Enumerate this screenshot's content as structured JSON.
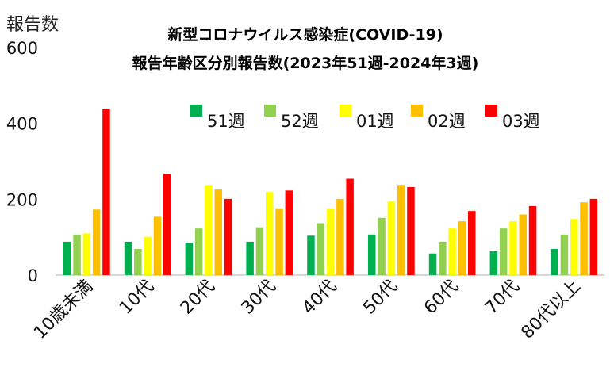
{
  "chart_data": {
    "type": "bar",
    "title": [
      "新型コロナウイルス感染症(COVID-19)",
      "報告年齢区分別報告数(2023年51週-2024年3週)"
    ],
    "ylabel": "報告数",
    "xlabel": "",
    "ylim": [
      0,
      600
    ],
    "yticks": [
      0,
      200,
      400,
      600
    ],
    "legend_position": "top-right",
    "categories": [
      "10歳未満",
      "10代",
      "20代",
      "30代",
      "40代",
      "50代",
      "60代",
      "70代",
      "80代以上"
    ],
    "series": [
      {
        "name": "51週",
        "color": "#00B050",
        "values": [
          88,
          88,
          85,
          88,
          104,
          107,
          57,
          63,
          69
        ]
      },
      {
        "name": "52週",
        "color": "#92D050",
        "values": [
          107,
          69,
          123,
          126,
          137,
          151,
          88,
          123,
          107
        ]
      },
      {
        "name": "01週",
        "color": "#FFFF00",
        "values": [
          110,
          101,
          238,
          219,
          176,
          194,
          123,
          142,
          148
        ]
      },
      {
        "name": "02週",
        "color": "#FFC000",
        "values": [
          173,
          154,
          226,
          176,
          201,
          238,
          142,
          160,
          192
        ]
      },
      {
        "name": "03週",
        "color": "#FF0000",
        "values": [
          438,
          267,
          201,
          223,
          254,
          232,
          169,
          182,
          201
        ]
      }
    ]
  }
}
